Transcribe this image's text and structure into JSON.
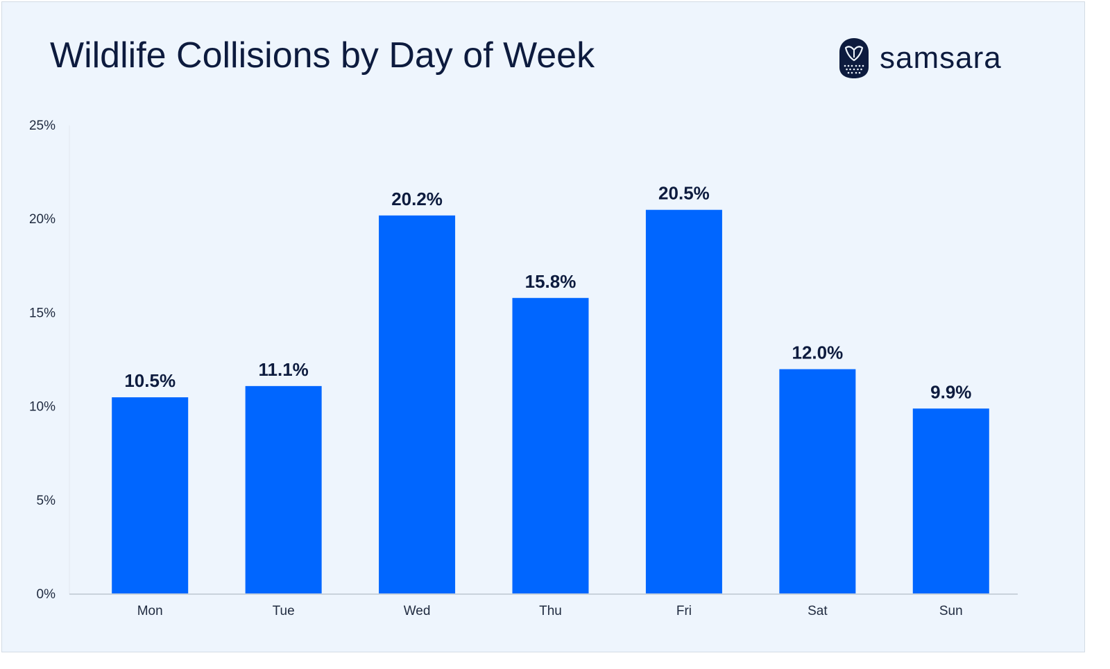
{
  "title": "Wildlife Collisions by Day of Week",
  "brand": {
    "name": "samsara",
    "icon": "owl-logo-icon"
  },
  "colors": {
    "background": "#eef5fd",
    "bar": "#0066ff",
    "text": "#0d1b3e",
    "axis_text": "#1f2a3f",
    "baseline": "#c9d2dc"
  },
  "chart_data": {
    "type": "bar",
    "title": "Wildlife Collisions by Day of Week",
    "xlabel": "",
    "ylabel": "",
    "categories": [
      "Mon",
      "Tue",
      "Wed",
      "Thu",
      "Fri",
      "Sat",
      "Sun"
    ],
    "values": [
      10.5,
      11.1,
      20.2,
      15.8,
      20.5,
      12.0,
      9.9
    ],
    "data_labels": [
      "10.5%",
      "11.1%",
      "20.2%",
      "15.8%",
      "20.5%",
      "12.0%",
      "9.9%"
    ],
    "ylim": [
      0,
      25
    ],
    "yticks": [
      0,
      5,
      10,
      15,
      20,
      25
    ],
    "ytick_labels": [
      "0%",
      "5%",
      "10%",
      "15%",
      "20%",
      "25%"
    ],
    "grid": false,
    "legend": "none"
  }
}
